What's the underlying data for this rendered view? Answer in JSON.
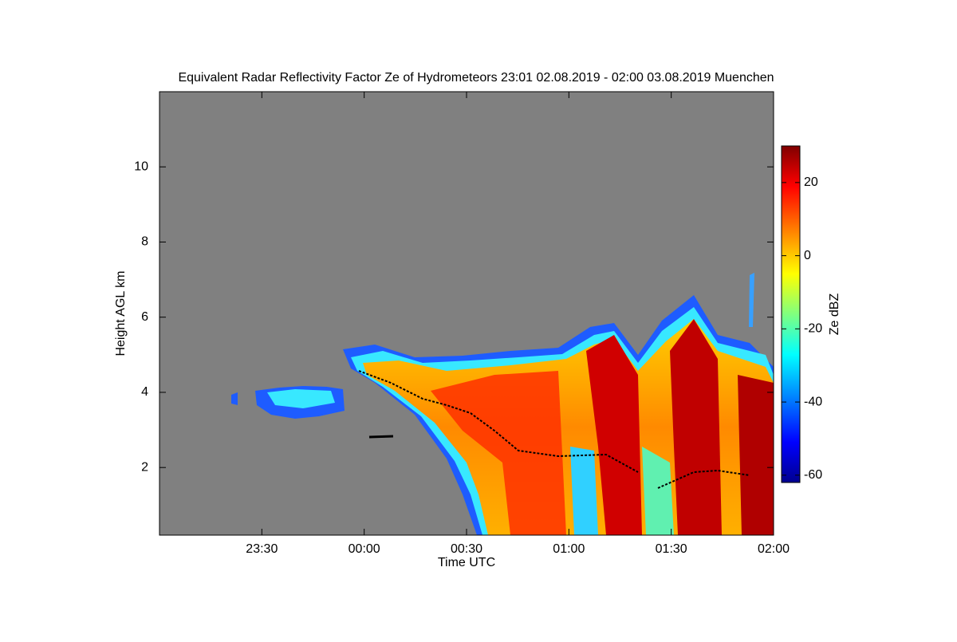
{
  "chart_data": {
    "type": "time-height",
    "title": "Equivalent Radar Reflectivity Factor Ze of Hydrometeors   23:01 02.08.2019 - 02:00 03.08.2019 Muenchen",
    "x_label": "Time UTC",
    "y_label": "Height AGL km",
    "xlim": [
      "23:00",
      "02:00"
    ],
    "xticks": [
      "23:30",
      "00:00",
      "00:30",
      "01:00",
      "01:30",
      "02:00"
    ],
    "ylim": [
      0.2,
      12
    ],
    "yticks": [
      2,
      4,
      6,
      8,
      10
    ],
    "colorbar": {
      "label": "Ze dBZ",
      "colormap": "jet",
      "lim": [
        -62,
        30
      ],
      "ticks": [
        -60,
        -40,
        -20,
        0,
        20
      ]
    },
    "background": "#808080"
  }
}
